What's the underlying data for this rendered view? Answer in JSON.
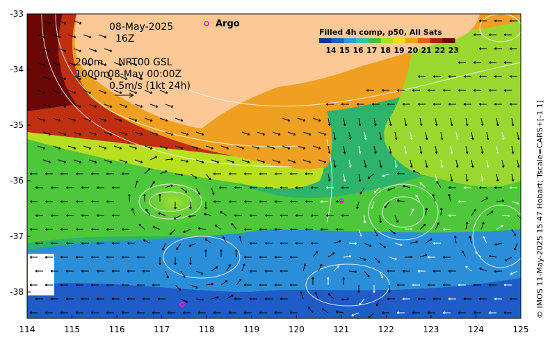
{
  "map": {
    "x_ticks": [
      "114",
      "115",
      "116",
      "117",
      "118",
      "119",
      "120",
      "121",
      "122",
      "123",
      "124",
      "125"
    ],
    "y_ticks": [
      "-33",
      "-34",
      "-35",
      "-36",
      "-37",
      "-38"
    ],
    "annotations": {
      "date": "08-May-2025",
      "time": "16Z",
      "depth_200": "200m",
      "depth_1000": "1000m",
      "source": "NRT00 GSL",
      "valid_time": "08-May 00:00Z",
      "scale_text": "0.5m/s (1kt 24h)"
    },
    "legend": {
      "argo_label": "Argo",
      "argo_color": "#e020e0"
    },
    "colorbar": {
      "title": "Filled 4h comp, p50, All Sats",
      "labels": [
        "14",
        "15",
        "16",
        "17",
        "18",
        "19",
        "20",
        "21",
        "22",
        "23"
      ],
      "colors": [
        "#1030a0",
        "#1a5fd0",
        "#20a0e0",
        "#30c8a0",
        "#40c040",
        "#a8e020",
        "#e8e020",
        "#f0a020",
        "#e06010",
        "#b02010",
        "#6a0808"
      ]
    },
    "credit": "© IMOS 11-May-2025 15:47 Hobart; Tscale=CARS+[-1 1]",
    "land_color": "#fcc896"
  }
}
